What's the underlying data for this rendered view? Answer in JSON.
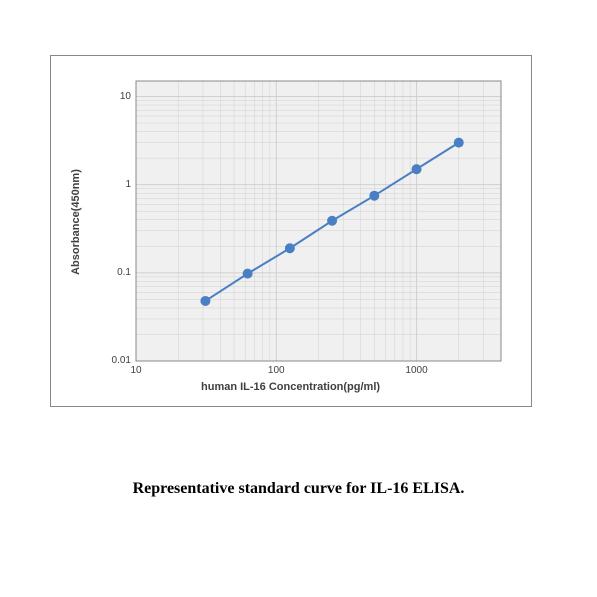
{
  "chart": {
    "type": "line",
    "x_scale": "log",
    "y_scale": "log",
    "xlim": [
      10,
      4000
    ],
    "ylim": [
      0.01,
      15
    ],
    "x_ticks": [
      10,
      100,
      1000
    ],
    "y_ticks": [
      0.01,
      0.1,
      1,
      10
    ],
    "x_tick_labels": [
      "10",
      "100",
      "1000"
    ],
    "y_tick_labels": [
      "0.01",
      "0.1",
      "1",
      "10"
    ],
    "x_label": "human IL-16  Concentration(pg/ml)",
    "y_label": "Absorbance(450nm)",
    "x_label_fontsize": 11,
    "y_label_fontsize": 11,
    "tick_fontsize": 10,
    "plot_background": "#f0f0f0",
    "grid_color": "#d0d0d0",
    "border_color": "#888888",
    "series": {
      "x": [
        31.25,
        62.5,
        125,
        250,
        500,
        1000,
        2000
      ],
      "y": [
        0.048,
        0.098,
        0.19,
        0.39,
        0.75,
        1.5,
        3.0
      ],
      "line_color": "#4a7fc4",
      "line_width": 2,
      "marker": "circle",
      "marker_color": "#4a7fc4",
      "marker_size": 5
    }
  },
  "caption": "Representative standard curve for IL-16 ELISA."
}
